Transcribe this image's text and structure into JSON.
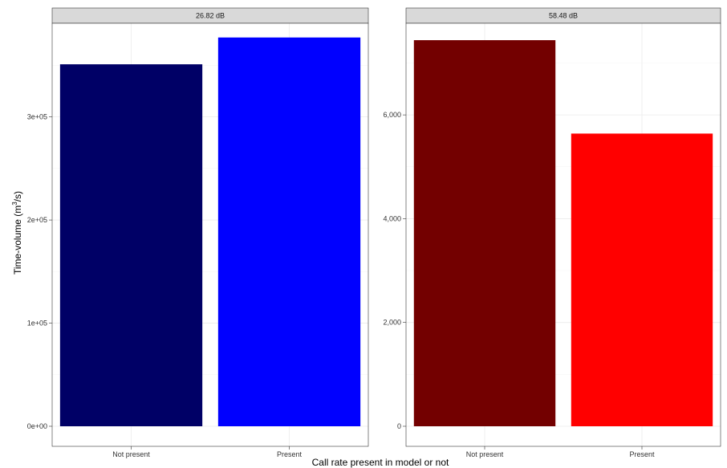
{
  "chart_data": {
    "type": "bar",
    "xlabel": "Call rate present in model or not",
    "ylabel_main": "Time-volume (m",
    "ylabel_sup": "3",
    "ylabel_tail": "/s)",
    "grid": true,
    "legend": "none",
    "panels": [
      {
        "strip": "26.82 dB",
        "categories": [
          "Not present",
          "Present"
        ],
        "values": [
          351000,
          377000
        ],
        "colors": [
          "#000066",
          "#0000ff"
        ],
        "ylim": [
          0,
          390000
        ],
        "y_ticks": [
          0,
          100000,
          200000,
          300000
        ],
        "y_tick_labels": [
          "0e+00",
          "1e+05",
          "2e+05",
          "3e+05"
        ]
      },
      {
        "strip": "58.48 dB",
        "categories": [
          "Not present",
          "Present"
        ],
        "values": [
          7440,
          5640
        ],
        "colors": [
          "#730000",
          "#ff0000"
        ],
        "ylim": [
          0,
          7750
        ],
        "y_ticks": [
          0,
          2000,
          4000,
          6000
        ],
        "y_tick_labels": [
          "0",
          "2,000",
          "4,000",
          "6,000"
        ]
      }
    ]
  }
}
